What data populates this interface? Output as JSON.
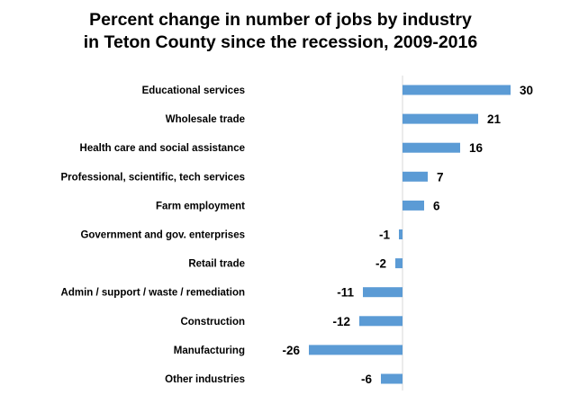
{
  "chart_data": {
    "type": "bar",
    "orientation": "horizontal",
    "title": "Percent change in number of jobs by industry in Teton County since the recession, 2009-2016",
    "title_lines": [
      "Percent change in number of jobs by industry",
      "in Teton County since the recession, 2009-2016"
    ],
    "categories": [
      "Educational services",
      "Wholesale trade",
      "Health care and social assistance",
      "Professional, scientific, tech services",
      "Farm employment",
      "Government and gov. enterprises",
      "Retail trade",
      "Admin / support / waste  / remediation",
      "Construction",
      "Manufacturing",
      "Other industries"
    ],
    "values": [
      30,
      21,
      16,
      7,
      6,
      -1,
      -2,
      -11,
      -12,
      -26,
      -6
    ],
    "value_labels": [
      "30",
      "21",
      "16",
      "7",
      "6",
      "-1",
      "-2",
      "-11",
      "-12",
      "-26",
      "-6"
    ],
    "xlabel": "",
    "ylabel": "",
    "xlim": [
      -26,
      30
    ],
    "grid": false,
    "legend": "none",
    "data_labels": true,
    "bar_color": "#5B9BD5",
    "axis_color": "#D9D9D9"
  }
}
